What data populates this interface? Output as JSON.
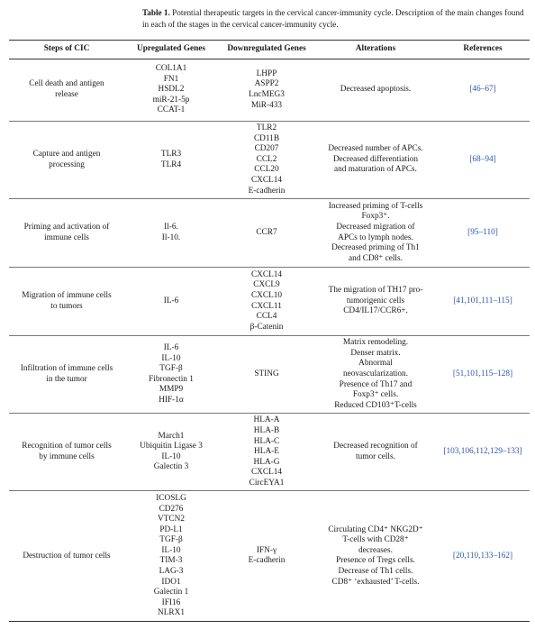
{
  "caption": {
    "label": "Table 1.",
    "text": " Potential therapeutic targets in the cervical cancer-immunity cycle. Description of the main changes found in each of the stages in the cervical cancer-immunity cycle."
  },
  "headers": {
    "steps": "Steps of CIC",
    "up": "Upregulated Genes",
    "down": "Downregulated Genes",
    "alt": "Alterations",
    "refs": "References"
  },
  "rows": [
    {
      "step": "Cell death and antigen release",
      "up": [
        "COL1A1",
        "FN1",
        "HSDL2",
        "miR-21-5p",
        "CCAT-1"
      ],
      "down": [
        "LHPP",
        "ASPP2",
        "LncMEG3",
        "MiR-433"
      ],
      "alt": [
        "Decreased apoptosis."
      ],
      "refs": "[46–67]"
    },
    {
      "step": "Capture and antigen processing",
      "up": [
        "TLR3",
        "TLR4"
      ],
      "down": [
        "TLR2",
        "CD11B",
        "CD207",
        "CCL2",
        "CCL20",
        "CXCL14",
        "E-cadherin"
      ],
      "alt": [
        "Decreased number of APCs.",
        "Decreased differentiation and maturation of APCs."
      ],
      "refs": "[68–94]"
    },
    {
      "step": "Priming and activation of immune cells",
      "up": [
        "Il-6.",
        "Il-10."
      ],
      "down": [
        "CCR7"
      ],
      "alt": [
        "Increased priming of T-cells Foxp3⁺.",
        "Decreased migration of APCs to lymph nodes.",
        "Decreased priming of Th1 and CD8⁺ cells."
      ],
      "refs": "[95–110]"
    },
    {
      "step": "Migration of immune cells to tumors",
      "up": [
        "IL-6"
      ],
      "down": [
        "CXCL14",
        "CXCL9",
        "CXCL10",
        "CXCL11",
        "CCL4",
        "β-Catenin"
      ],
      "alt": [
        "The migration of TH17 pro-tumorigenic cells CD4/IL17/CCR6+."
      ],
      "refs": "[41,101,111–115]"
    },
    {
      "step": "Infiltration of immune cells in the tumor",
      "up": [
        "IL-6",
        "IL-10",
        "TGF-β",
        "Fibronectin 1",
        "MMP9",
        "HIF-1α"
      ],
      "down": [
        "STING"
      ],
      "alt": [
        "Matrix remodeling.",
        "Denser matrix.",
        "Abnormal neovascularization.",
        "Presence of Th17 and Foxp3⁺ cells.",
        "Reduced CD103⁺T-cells"
      ],
      "refs": "[51,101,115–128]"
    },
    {
      "step": "Recognition of tumor cells by immune cells",
      "up": [
        "March1",
        "Ubiquitin Ligase 3",
        "IL-10",
        "Galectin 3"
      ],
      "down": [
        "HLA-A",
        "HLA-B",
        "HLA-C",
        "HLA-E",
        "HLA-G",
        "CXCL14",
        "CircEYA1"
      ],
      "alt": [
        "Decreased recognition of tumor cells."
      ],
      "refs": "[103,106,112,129–133]"
    },
    {
      "step": "Destruction of tumor cells",
      "up": [
        "ICOSLG",
        "CD276",
        "VTCN2",
        "PD-L1",
        "TGF-β",
        "IL-10",
        "TIM-3",
        "LAG-3",
        "IDO1",
        "Galectin 1",
        "IFI16",
        "NLRX1"
      ],
      "down": [
        "IFN-γ",
        "E-cadherin"
      ],
      "alt": [
        "Circulating CD4⁺ NKG2D⁺ T-cells with CD28⁺ decreases.",
        "Presence of Tregs cells.",
        "Decrease of Th1 cells.",
        "CD8⁺ ‘exhausted’ T-cells."
      ],
      "refs": "[20,110,133–162]"
    }
  ]
}
